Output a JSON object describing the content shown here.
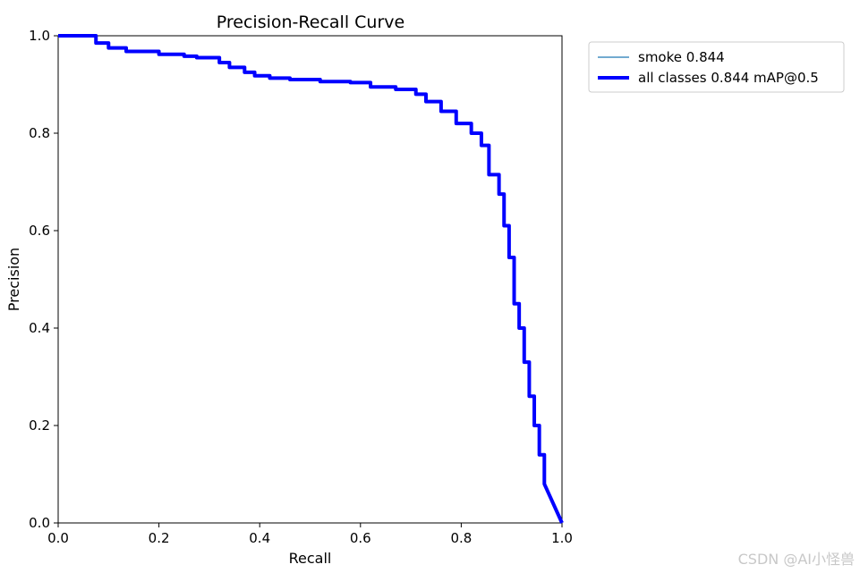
{
  "chart_data": {
    "type": "line",
    "title": "Precision-Recall Curve",
    "xlabel": "Recall",
    "ylabel": "Precision",
    "xlim": [
      0.0,
      1.0
    ],
    "ylim": [
      0.0,
      1.0
    ],
    "xticks": [
      "0.0",
      "0.2",
      "0.4",
      "0.6",
      "0.8",
      "1.0"
    ],
    "yticks": [
      "0.0",
      "0.2",
      "0.4",
      "0.6",
      "0.8",
      "1.0"
    ],
    "grid": false,
    "legend_position": "outside-top-right",
    "series": [
      {
        "name": "smoke 0.844",
        "color": "#1f77b4",
        "linewidth": "thin",
        "x": [
          0.0,
          0.075,
          0.075,
          0.1,
          0.1,
          0.135,
          0.135,
          0.2,
          0.2,
          0.25,
          0.25,
          0.275,
          0.275,
          0.32,
          0.32,
          0.34,
          0.34,
          0.37,
          0.37,
          0.39,
          0.39,
          0.42,
          0.42,
          0.46,
          0.46,
          0.52,
          0.52,
          0.58,
          0.58,
          0.62,
          0.62,
          0.67,
          0.67,
          0.71,
          0.71,
          0.73,
          0.73,
          0.76,
          0.76,
          0.79,
          0.79,
          0.82,
          0.82,
          0.84,
          0.84,
          0.855,
          0.855,
          0.875,
          0.875,
          0.885,
          0.885,
          0.895,
          0.895,
          0.905,
          0.905,
          0.915,
          0.915,
          0.925,
          0.925,
          0.935,
          0.935,
          0.945,
          0.945,
          0.955,
          0.955,
          0.965,
          0.965,
          1.0
        ],
        "y": [
          1.0,
          1.0,
          0.985,
          0.985,
          0.975,
          0.975,
          0.968,
          0.968,
          0.962,
          0.962,
          0.958,
          0.958,
          0.955,
          0.955,
          0.945,
          0.945,
          0.935,
          0.935,
          0.925,
          0.925,
          0.918,
          0.918,
          0.913,
          0.913,
          0.91,
          0.91,
          0.906,
          0.906,
          0.904,
          0.904,
          0.895,
          0.895,
          0.89,
          0.89,
          0.88,
          0.88,
          0.865,
          0.865,
          0.845,
          0.845,
          0.82,
          0.82,
          0.8,
          0.8,
          0.775,
          0.775,
          0.715,
          0.715,
          0.675,
          0.675,
          0.61,
          0.61,
          0.545,
          0.545,
          0.45,
          0.45,
          0.4,
          0.4,
          0.33,
          0.33,
          0.26,
          0.26,
          0.2,
          0.2,
          0.14,
          0.14,
          0.08,
          0.0
        ]
      },
      {
        "name": "all classes 0.844 mAP@0.5",
        "color": "#0000ff",
        "linewidth": "thick",
        "x": [
          0.0,
          0.075,
          0.075,
          0.1,
          0.1,
          0.135,
          0.135,
          0.2,
          0.2,
          0.25,
          0.25,
          0.275,
          0.275,
          0.32,
          0.32,
          0.34,
          0.34,
          0.37,
          0.37,
          0.39,
          0.39,
          0.42,
          0.42,
          0.46,
          0.46,
          0.52,
          0.52,
          0.58,
          0.58,
          0.62,
          0.62,
          0.67,
          0.67,
          0.71,
          0.71,
          0.73,
          0.73,
          0.76,
          0.76,
          0.79,
          0.79,
          0.82,
          0.82,
          0.84,
          0.84,
          0.855,
          0.855,
          0.875,
          0.875,
          0.885,
          0.885,
          0.895,
          0.895,
          0.905,
          0.905,
          0.915,
          0.915,
          0.925,
          0.925,
          0.935,
          0.935,
          0.945,
          0.945,
          0.955,
          0.955,
          0.965,
          0.965,
          1.0
        ],
        "y": [
          1.0,
          1.0,
          0.985,
          0.985,
          0.975,
          0.975,
          0.968,
          0.968,
          0.962,
          0.962,
          0.958,
          0.958,
          0.955,
          0.955,
          0.945,
          0.945,
          0.935,
          0.935,
          0.925,
          0.925,
          0.918,
          0.918,
          0.913,
          0.913,
          0.91,
          0.91,
          0.906,
          0.906,
          0.904,
          0.904,
          0.895,
          0.895,
          0.89,
          0.89,
          0.88,
          0.88,
          0.865,
          0.865,
          0.845,
          0.845,
          0.82,
          0.82,
          0.8,
          0.8,
          0.775,
          0.775,
          0.715,
          0.715,
          0.675,
          0.675,
          0.61,
          0.61,
          0.545,
          0.545,
          0.45,
          0.45,
          0.4,
          0.4,
          0.33,
          0.33,
          0.26,
          0.26,
          0.2,
          0.2,
          0.14,
          0.14,
          0.08,
          0.0
        ]
      }
    ]
  },
  "watermark": "CSDN @AI小怪兽"
}
